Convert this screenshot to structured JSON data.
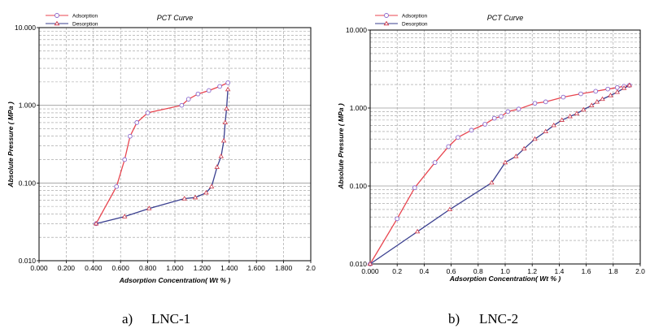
{
  "captions": [
    {
      "letter": "a)",
      "name": "LNC-1"
    },
    {
      "letter": "b)",
      "name": "LNC-2"
    }
  ],
  "chart_data": [
    {
      "type": "line",
      "title": "PCT Curve",
      "xlabel": "Adsorption Concentration( Wt % )",
      "ylabel": "Absolute Pressure ( MPa )",
      "xscale": "linear",
      "yscale": "log",
      "xlim": [
        0,
        2.0
      ],
      "ylim": [
        0.01,
        10
      ],
      "x_ticks": [
        "0.000",
        "0.200",
        "0.400",
        "0.600",
        "0.800",
        "1.000",
        "1.200",
        "1.400",
        "1.600",
        "1.800",
        "2.0"
      ],
      "y_ticks": [
        "0.010",
        "0.100",
        "1.000",
        "10.000"
      ],
      "grid": true,
      "legend_position": "top-left",
      "series": [
        {
          "name": "Adsorption",
          "color": "#e8454f",
          "marker": "circle",
          "x": [
            0.42,
            0.57,
            0.63,
            0.67,
            0.72,
            0.8,
            1.05,
            1.1,
            1.17,
            1.25,
            1.33,
            1.39
          ],
          "y": [
            0.03,
            0.09,
            0.2,
            0.4,
            0.6,
            0.8,
            1.0,
            1.2,
            1.4,
            1.55,
            1.75,
            1.95
          ]
        },
        {
          "name": "Desorption",
          "color": "#3a3f8f",
          "marker": "triangle",
          "x": [
            1.39,
            1.38,
            1.37,
            1.36,
            1.34,
            1.31,
            1.27,
            1.23,
            1.15,
            1.07,
            0.81,
            0.63,
            0.42
          ],
          "y": [
            1.6,
            0.9,
            0.6,
            0.35,
            0.22,
            0.16,
            0.09,
            0.075,
            0.065,
            0.063,
            0.047,
            0.037,
            0.03
          ]
        }
      ]
    },
    {
      "type": "line",
      "title": "PCT Curve",
      "xlabel": "Adsorption Concentration( Wt % )",
      "ylabel": "Absolute Pressure ( MPa )",
      "xscale": "linear",
      "yscale": "log",
      "xlim": [
        0,
        2.0
      ],
      "ylim": [
        0.01,
        10
      ],
      "x_ticks": [
        "0.000",
        "0.2",
        "0.4",
        "0.6",
        "0.8",
        "1.0",
        "1.2",
        "1.4",
        "1.6",
        "1.8",
        "2.0"
      ],
      "y_ticks": [
        "0.010",
        "0.100",
        "1.000",
        "10.000"
      ],
      "grid": true,
      "legend_position": "top-left",
      "series": [
        {
          "name": "Adsorption",
          "color": "#e8454f",
          "marker": "circle",
          "x": [
            0.0,
            0.2,
            0.33,
            0.48,
            0.58,
            0.65,
            0.75,
            0.85,
            0.92,
            0.97,
            1.02,
            1.1,
            1.22,
            1.3,
            1.43,
            1.56,
            1.67,
            1.76,
            1.83,
            1.88,
            1.92
          ],
          "y": [
            0.01,
            0.038,
            0.095,
            0.2,
            0.32,
            0.42,
            0.52,
            0.62,
            0.74,
            0.78,
            0.9,
            0.97,
            1.15,
            1.2,
            1.38,
            1.52,
            1.64,
            1.75,
            1.83,
            1.9,
            1.95
          ]
        },
        {
          "name": "Desorption",
          "color": "#3a3f8f",
          "marker": "triangle",
          "x": [
            1.92,
            1.88,
            1.83,
            1.78,
            1.72,
            1.68,
            1.64,
            1.58,
            1.53,
            1.48,
            1.42,
            1.36,
            1.3,
            1.22,
            1.14,
            1.08,
            1.0,
            0.9,
            0.59,
            0.35,
            0.0
          ],
          "y": [
            1.95,
            1.8,
            1.6,
            1.45,
            1.3,
            1.2,
            1.08,
            0.95,
            0.85,
            0.78,
            0.7,
            0.6,
            0.5,
            0.4,
            0.3,
            0.24,
            0.2,
            0.11,
            0.05,
            0.026,
            0.01
          ]
        }
      ]
    }
  ]
}
